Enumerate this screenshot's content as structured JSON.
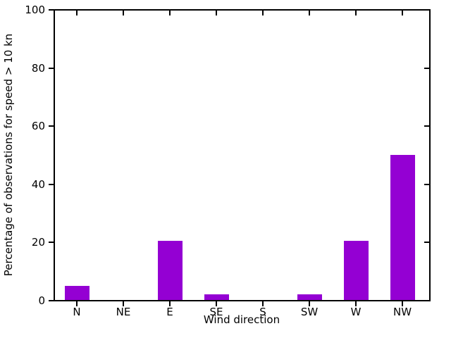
{
  "figure": {
    "background_color": "#ffffff",
    "axis_color": "#000000",
    "text_color": "#000000"
  },
  "chart_data": {
    "type": "bar",
    "title": "",
    "categories": [
      "N",
      "NE",
      "E",
      "SE",
      "S",
      "SW",
      "W",
      "NW"
    ],
    "values": [
      5,
      0,
      20.5,
      2.2,
      0,
      2.2,
      20.5,
      50
    ],
    "xlabel": "Wind direction",
    "ylabel": "Percentage of observations for speed > 10 kn",
    "ylim": [
      0,
      100
    ],
    "yticks": [
      0,
      20,
      40,
      60,
      80,
      100
    ],
    "ytick_labels": [
      "0",
      "20",
      "40",
      "60",
      "80",
      "100"
    ],
    "bar_color": "#9400D3",
    "grid": false,
    "legend": null,
    "tick_style": "outward on left/bottom, inward mirrored on top/right"
  }
}
